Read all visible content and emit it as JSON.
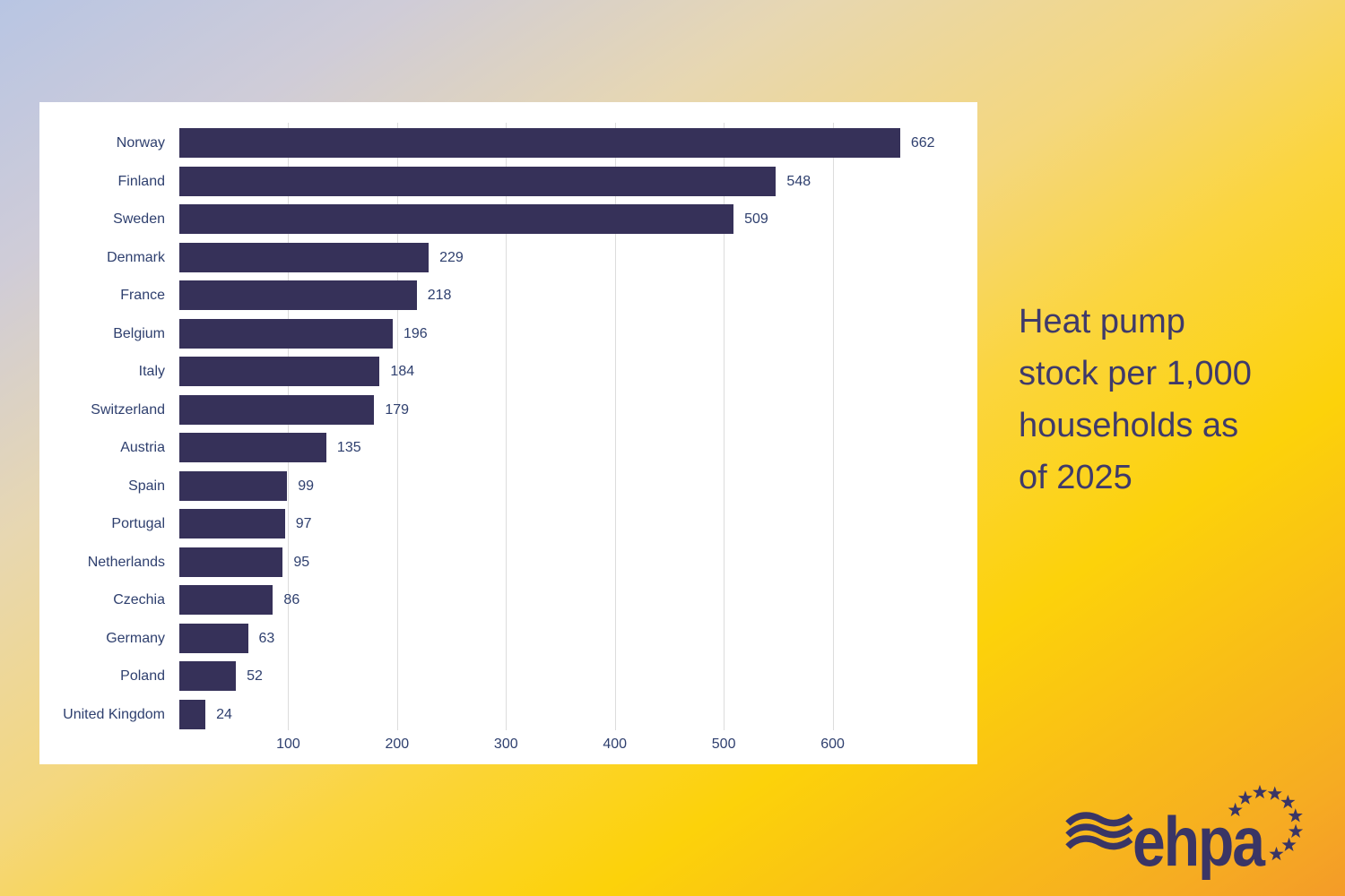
{
  "background": {
    "gradient_stops": [
      "#b8c5e3",
      "#cfccd8",
      "#e7d7b2",
      "#f4d77e",
      "#fbd53e",
      "#fcd20a",
      "#f6ac22",
      "#f49b28"
    ]
  },
  "panel": {
    "bg_color": "#ffffff"
  },
  "title": {
    "text": "Heat pump stock per 1,000 households as of 2025",
    "lines": [
      "Heat pump",
      "stock per 1,000",
      "households as",
      "of 2025"
    ],
    "color": "#3f3a6a"
  },
  "chart_data": {
    "type": "bar",
    "orientation": "horizontal",
    "title": "Heat pump stock per 1,000 households as of 2025",
    "xlabel": "",
    "ylabel": "",
    "categories": [
      "Norway",
      "Finland",
      "Sweden",
      "Denmark",
      "France",
      "Belgium",
      "Italy",
      "Switzerland",
      "Austria",
      "Spain",
      "Portugal",
      "Netherlands",
      "Czechia",
      "Germany",
      "Poland",
      "United Kingdom"
    ],
    "values": [
      662,
      548,
      509,
      229,
      218,
      196,
      184,
      179,
      135,
      99,
      97,
      95,
      86,
      63,
      52,
      24
    ],
    "value_labels_shown": true,
    "x_ticks": [
      100,
      200,
      300,
      400,
      500,
      600
    ],
    "xlim": [
      0,
      700
    ],
    "grid": "vertical",
    "legend": "none",
    "bar_color": "#363159",
    "label_color": "#2e3f6e",
    "grid_color": "#dcdcdc"
  },
  "logo": {
    "text": "ehpa",
    "color": "#3a3565",
    "wave_icon": "three-wavy-lines",
    "stars_icon": "eu-stars-arc",
    "star_count": 9
  }
}
